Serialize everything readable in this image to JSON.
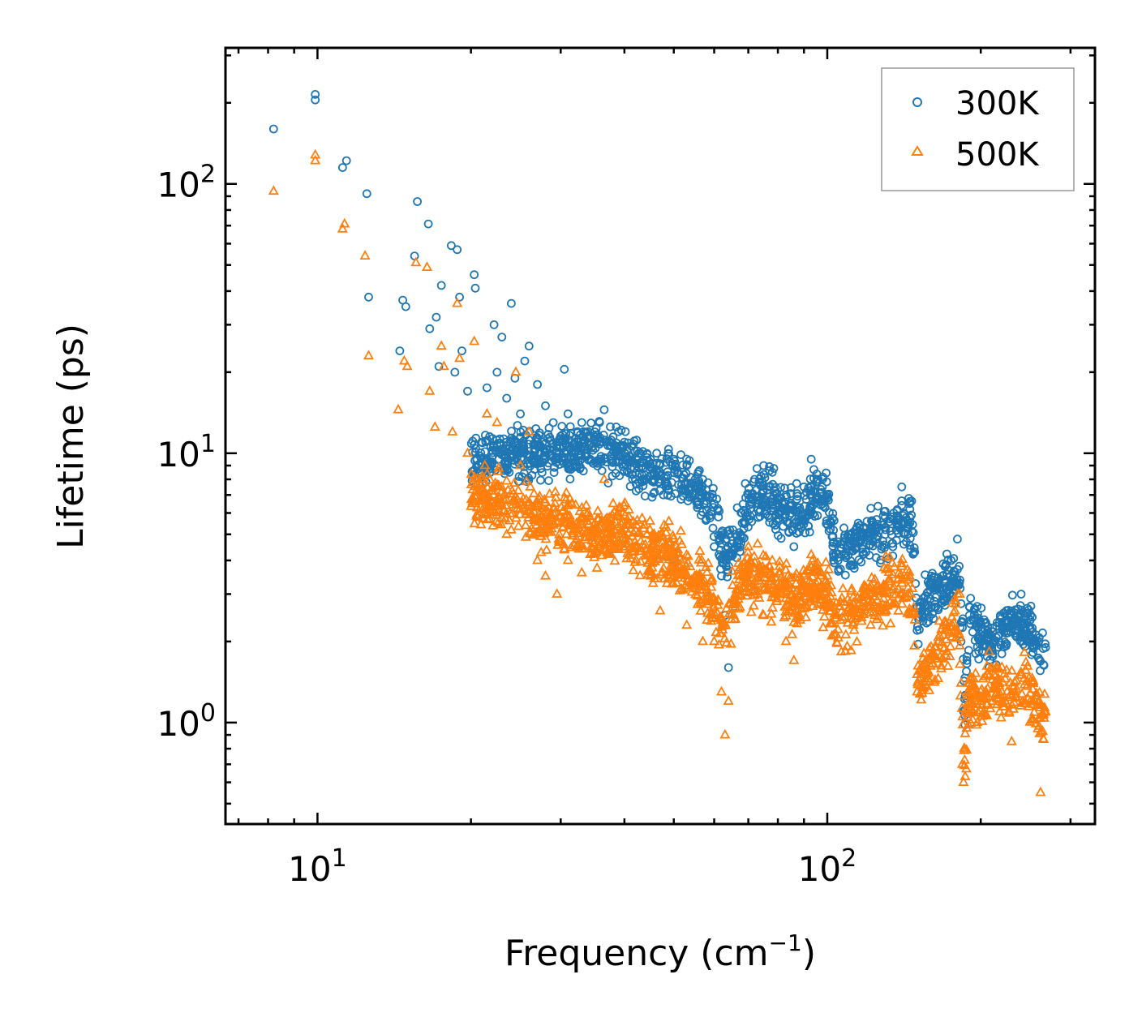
{
  "chart_data": {
    "type": "scatter",
    "title": "",
    "xlabel": "Frequency (cm",
    "xlabel_sup": "−1",
    "xlabel_end": ")",
    "ylabel": "Lifetime (ps)",
    "xscale": "log",
    "yscale": "log",
    "xlim": [
      6.6,
      335
    ],
    "ylim": [
      0.42,
      320
    ],
    "x_ticks": [
      {
        "value": 10,
        "base": "10",
        "exp": "1"
      },
      {
        "value": 100,
        "base": "10",
        "exp": "2"
      }
    ],
    "y_ticks": [
      {
        "value": 1,
        "base": "10",
        "exp": "0"
      },
      {
        "value": 10,
        "base": "10",
        "exp": "1"
      },
      {
        "value": 100,
        "base": "10",
        "exp": "2"
      }
    ],
    "legend_position": "top-right",
    "colors": {
      "300K": "#1f77b4",
      "500K": "#ff7f0e"
    },
    "series": [
      {
        "name": "300K",
        "marker": "circle",
        "color": "#1f77b4",
        "anchors": [
          [
            8.2,
            160
          ],
          [
            9.9,
            215
          ],
          [
            9.9,
            205
          ],
          [
            11.2,
            115
          ],
          [
            11.4,
            122
          ],
          [
            12.5,
            92
          ],
          [
            12.6,
            38
          ],
          [
            14.5,
            24
          ],
          [
            14.7,
            37
          ],
          [
            14.9,
            35
          ],
          [
            15.5,
            54
          ],
          [
            15.7,
            86
          ],
          [
            16.5,
            71
          ],
          [
            16.6,
            29
          ],
          [
            17.1,
            32
          ],
          [
            17.3,
            21
          ],
          [
            17.5,
            42
          ],
          [
            18.3,
            59
          ],
          [
            18.6,
            20
          ],
          [
            18.8,
            57
          ],
          [
            19.0,
            38
          ],
          [
            19.2,
            24
          ],
          [
            19.7,
            17
          ],
          [
            20.3,
            46
          ],
          [
            20.4,
            41
          ],
          [
            21.0,
            11
          ],
          [
            21.5,
            17.5
          ],
          [
            22.2,
            30
          ],
          [
            22.5,
            20
          ],
          [
            23.0,
            27
          ],
          [
            23.5,
            16
          ],
          [
            24.0,
            36
          ],
          [
            24.4,
            19
          ],
          [
            25.0,
            14
          ],
          [
            25.5,
            22
          ],
          [
            26.0,
            25
          ],
          [
            27.0,
            18
          ],
          [
            28.0,
            15
          ],
          [
            29.0,
            13
          ],
          [
            30.5,
            20.5
          ],
          [
            31.0,
            14
          ],
          [
            33.0,
            13
          ],
          [
            35.0,
            12
          ],
          [
            36.5,
            14.5
          ],
          [
            38.0,
            11.5
          ],
          [
            40.0,
            11
          ],
          [
            43.0,
            10
          ],
          [
            45.0,
            9.5
          ],
          [
            47.0,
            8
          ],
          [
            50.0,
            9.5
          ],
          [
            53.0,
            9
          ],
          [
            55.0,
            7
          ],
          [
            57.0,
            8
          ],
          [
            60.0,
            4.5
          ],
          [
            62.0,
            3.5
          ],
          [
            63.0,
            2.5
          ],
          [
            64.0,
            1.6
          ],
          [
            66.0,
            5
          ],
          [
            68.0,
            6
          ],
          [
            70.0,
            7
          ],
          [
            72.0,
            8
          ],
          [
            75.0,
            9
          ],
          [
            78.0,
            8.5
          ],
          [
            80.0,
            6
          ],
          [
            83.0,
            7
          ],
          [
            86.0,
            4.5
          ],
          [
            90.0,
            7.5
          ],
          [
            93.0,
            9.5
          ],
          [
            96.0,
            8
          ],
          [
            100.0,
            7
          ],
          [
            105.0,
            4
          ],
          [
            110.0,
            5
          ],
          [
            115.0,
            5.5
          ],
          [
            120.0,
            5
          ],
          [
            125.0,
            4.8
          ],
          [
            130.0,
            5.2
          ],
          [
            135.0,
            6
          ],
          [
            140.0,
            7.5
          ],
          [
            145.0,
            6.5
          ],
          [
            150.0,
            2.2
          ],
          [
            155.0,
            2.8
          ],
          [
            160.0,
            3.5
          ],
          [
            165.0,
            3.3
          ],
          [
            170.0,
            3.4
          ],
          [
            175.0,
            4
          ],
          [
            180.0,
            4.8
          ],
          [
            183.0,
            2
          ],
          [
            185.0,
            1.1
          ],
          [
            190.0,
            2.5
          ],
          [
            200.0,
            2
          ],
          [
            210.0,
            2.1
          ],
          [
            220.0,
            1.8
          ],
          [
            230.0,
            2.5
          ],
          [
            240.0,
            3
          ],
          [
            250.0,
            2.4
          ],
          [
            260.0,
            2
          ],
          [
            268.0,
            1.9
          ]
        ],
        "trend": [
          [
            20,
            9.5
          ],
          [
            25,
            10
          ],
          [
            30,
            10
          ],
          [
            35,
            10.5
          ],
          [
            40,
            9.5
          ],
          [
            45,
            8.5
          ],
          [
            50,
            8
          ],
          [
            55,
            7.5
          ],
          [
            60,
            6
          ],
          [
            63,
            4
          ],
          [
            66,
            4.5
          ],
          [
            70,
            6.5
          ],
          [
            75,
            7
          ],
          [
            80,
            6.5
          ],
          [
            85,
            6
          ],
          [
            90,
            6
          ],
          [
            95,
            7
          ],
          [
            100,
            6.5
          ],
          [
            104,
            4
          ],
          [
            110,
            4.5
          ],
          [
            120,
            5
          ],
          [
            130,
            5
          ],
          [
            140,
            5.5
          ],
          [
            147,
            5.5
          ],
          [
            150,
            2.5
          ],
          [
            160,
            3
          ],
          [
            170,
            3.2
          ],
          [
            180,
            3.8
          ],
          [
            184,
            2.5
          ],
          [
            186,
            1.2
          ],
          [
            190,
            2.5
          ],
          [
            200,
            2.1
          ],
          [
            210,
            2
          ],
          [
            220,
            2.2
          ],
          [
            230,
            2.4
          ],
          [
            240,
            2.3
          ],
          [
            250,
            2.1
          ],
          [
            260,
            1.9
          ],
          [
            268,
            1.8
          ]
        ]
      },
      {
        "name": "500K",
        "marker": "triangle",
        "color": "#ff7f0e",
        "anchors": [
          [
            8.2,
            94
          ],
          [
            9.9,
            128
          ],
          [
            9.9,
            122
          ],
          [
            11.2,
            68
          ],
          [
            11.3,
            71
          ],
          [
            12.4,
            54
          ],
          [
            12.6,
            23
          ],
          [
            14.4,
            14.5
          ],
          [
            14.8,
            22
          ],
          [
            15.0,
            21
          ],
          [
            15.6,
            51
          ],
          [
            16.4,
            49
          ],
          [
            16.6,
            17
          ],
          [
            17.0,
            12.5
          ],
          [
            17.5,
            25
          ],
          [
            17.7,
            21
          ],
          [
            18.4,
            12
          ],
          [
            18.8,
            36
          ],
          [
            19.0,
            22.5
          ],
          [
            19.7,
            10
          ],
          [
            20.3,
            26
          ],
          [
            20.4,
            6.5
          ],
          [
            21.0,
            8
          ],
          [
            21.5,
            14
          ],
          [
            22.0,
            6.5
          ],
          [
            22.5,
            13
          ],
          [
            23.5,
            5
          ],
          [
            24.5,
            20
          ],
          [
            25.0,
            9
          ],
          [
            26.0,
            12
          ],
          [
            27.0,
            4
          ],
          [
            28.0,
            3.5
          ],
          [
            29.5,
            3
          ],
          [
            31.0,
            4
          ],
          [
            33.0,
            3.6
          ],
          [
            35.0,
            5
          ],
          [
            36.5,
            8
          ],
          [
            38.0,
            6.5
          ],
          [
            40.0,
            5
          ],
          [
            42.0,
            4.5
          ],
          [
            45.0,
            3.5
          ],
          [
            47.0,
            2.6
          ],
          [
            50.0,
            3.5
          ],
          [
            53.0,
            2.3
          ],
          [
            55.0,
            3.5
          ],
          [
            57.0,
            2
          ],
          [
            60.0,
            2
          ],
          [
            62.0,
            1.3
          ],
          [
            63.0,
            0.9
          ],
          [
            64.0,
            1.2
          ],
          [
            66.0,
            3
          ],
          [
            68.0,
            3.5
          ],
          [
            70.0,
            4.5
          ],
          [
            73.0,
            3
          ],
          [
            75.0,
            2.5
          ],
          [
            78.0,
            4
          ],
          [
            80.0,
            3
          ],
          [
            83.0,
            2
          ],
          [
            86.0,
            1.7
          ],
          [
            88.0,
            3
          ],
          [
            90.0,
            3.5
          ],
          [
            93.0,
            4.2
          ],
          [
            96.0,
            3
          ],
          [
            100.0,
            3.5
          ],
          [
            104.0,
            2.5
          ],
          [
            108.0,
            2.8
          ],
          [
            112.0,
            2.6
          ],
          [
            118.0,
            3
          ],
          [
            125.0,
            3.2
          ],
          [
            132.0,
            3.4
          ],
          [
            140.0,
            3.8
          ],
          [
            145.0,
            3.5
          ],
          [
            150.0,
            1.3
          ],
          [
            155.0,
            1.6
          ],
          [
            160.0,
            1.8
          ],
          [
            165.0,
            2
          ],
          [
            170.0,
            2.2
          ],
          [
            178.0,
            2.6
          ],
          [
            182.0,
            3
          ],
          [
            184.0,
            0.7
          ],
          [
            185.0,
            0.6
          ],
          [
            190.0,
            1.4
          ],
          [
            200.0,
            1.2
          ],
          [
            210.0,
            1.6
          ],
          [
            220.0,
            1.3
          ],
          [
            230.0,
            0.85
          ],
          [
            240.0,
            1.5
          ],
          [
            250.0,
            1.2
          ],
          [
            262.0,
            0.55
          ],
          [
            268.0,
            1.1
          ]
        ],
        "trend": [
          [
            20,
            7
          ],
          [
            25,
            6
          ],
          [
            30,
            5.5
          ],
          [
            35,
            5
          ],
          [
            40,
            5
          ],
          [
            45,
            4.3
          ],
          [
            50,
            4
          ],
          [
            55,
            3.5
          ],
          [
            60,
            2.8
          ],
          [
            63,
            2.2
          ],
          [
            66,
            3
          ],
          [
            70,
            3.5
          ],
          [
            75,
            3.3
          ],
          [
            80,
            3.2
          ],
          [
            85,
            2.8
          ],
          [
            90,
            3
          ],
          [
            95,
            3.3
          ],
          [
            100,
            3
          ],
          [
            104,
            2.3
          ],
          [
            110,
            2.5
          ],
          [
            120,
            2.8
          ],
          [
            130,
            3
          ],
          [
            140,
            3.3
          ],
          [
            147,
            3.2
          ],
          [
            150,
            1.4
          ],
          [
            160,
            1.7
          ],
          [
            170,
            2
          ],
          [
            180,
            2.5
          ],
          [
            184,
            1.2
          ],
          [
            186,
            0.7
          ],
          [
            190,
            1.3
          ],
          [
            200,
            1.2
          ],
          [
            210,
            1.4
          ],
          [
            220,
            1.3
          ],
          [
            230,
            1.3
          ],
          [
            240,
            1.4
          ],
          [
            250,
            1.3
          ],
          [
            260,
            1.1
          ],
          [
            268,
            1
          ]
        ]
      }
    ]
  }
}
